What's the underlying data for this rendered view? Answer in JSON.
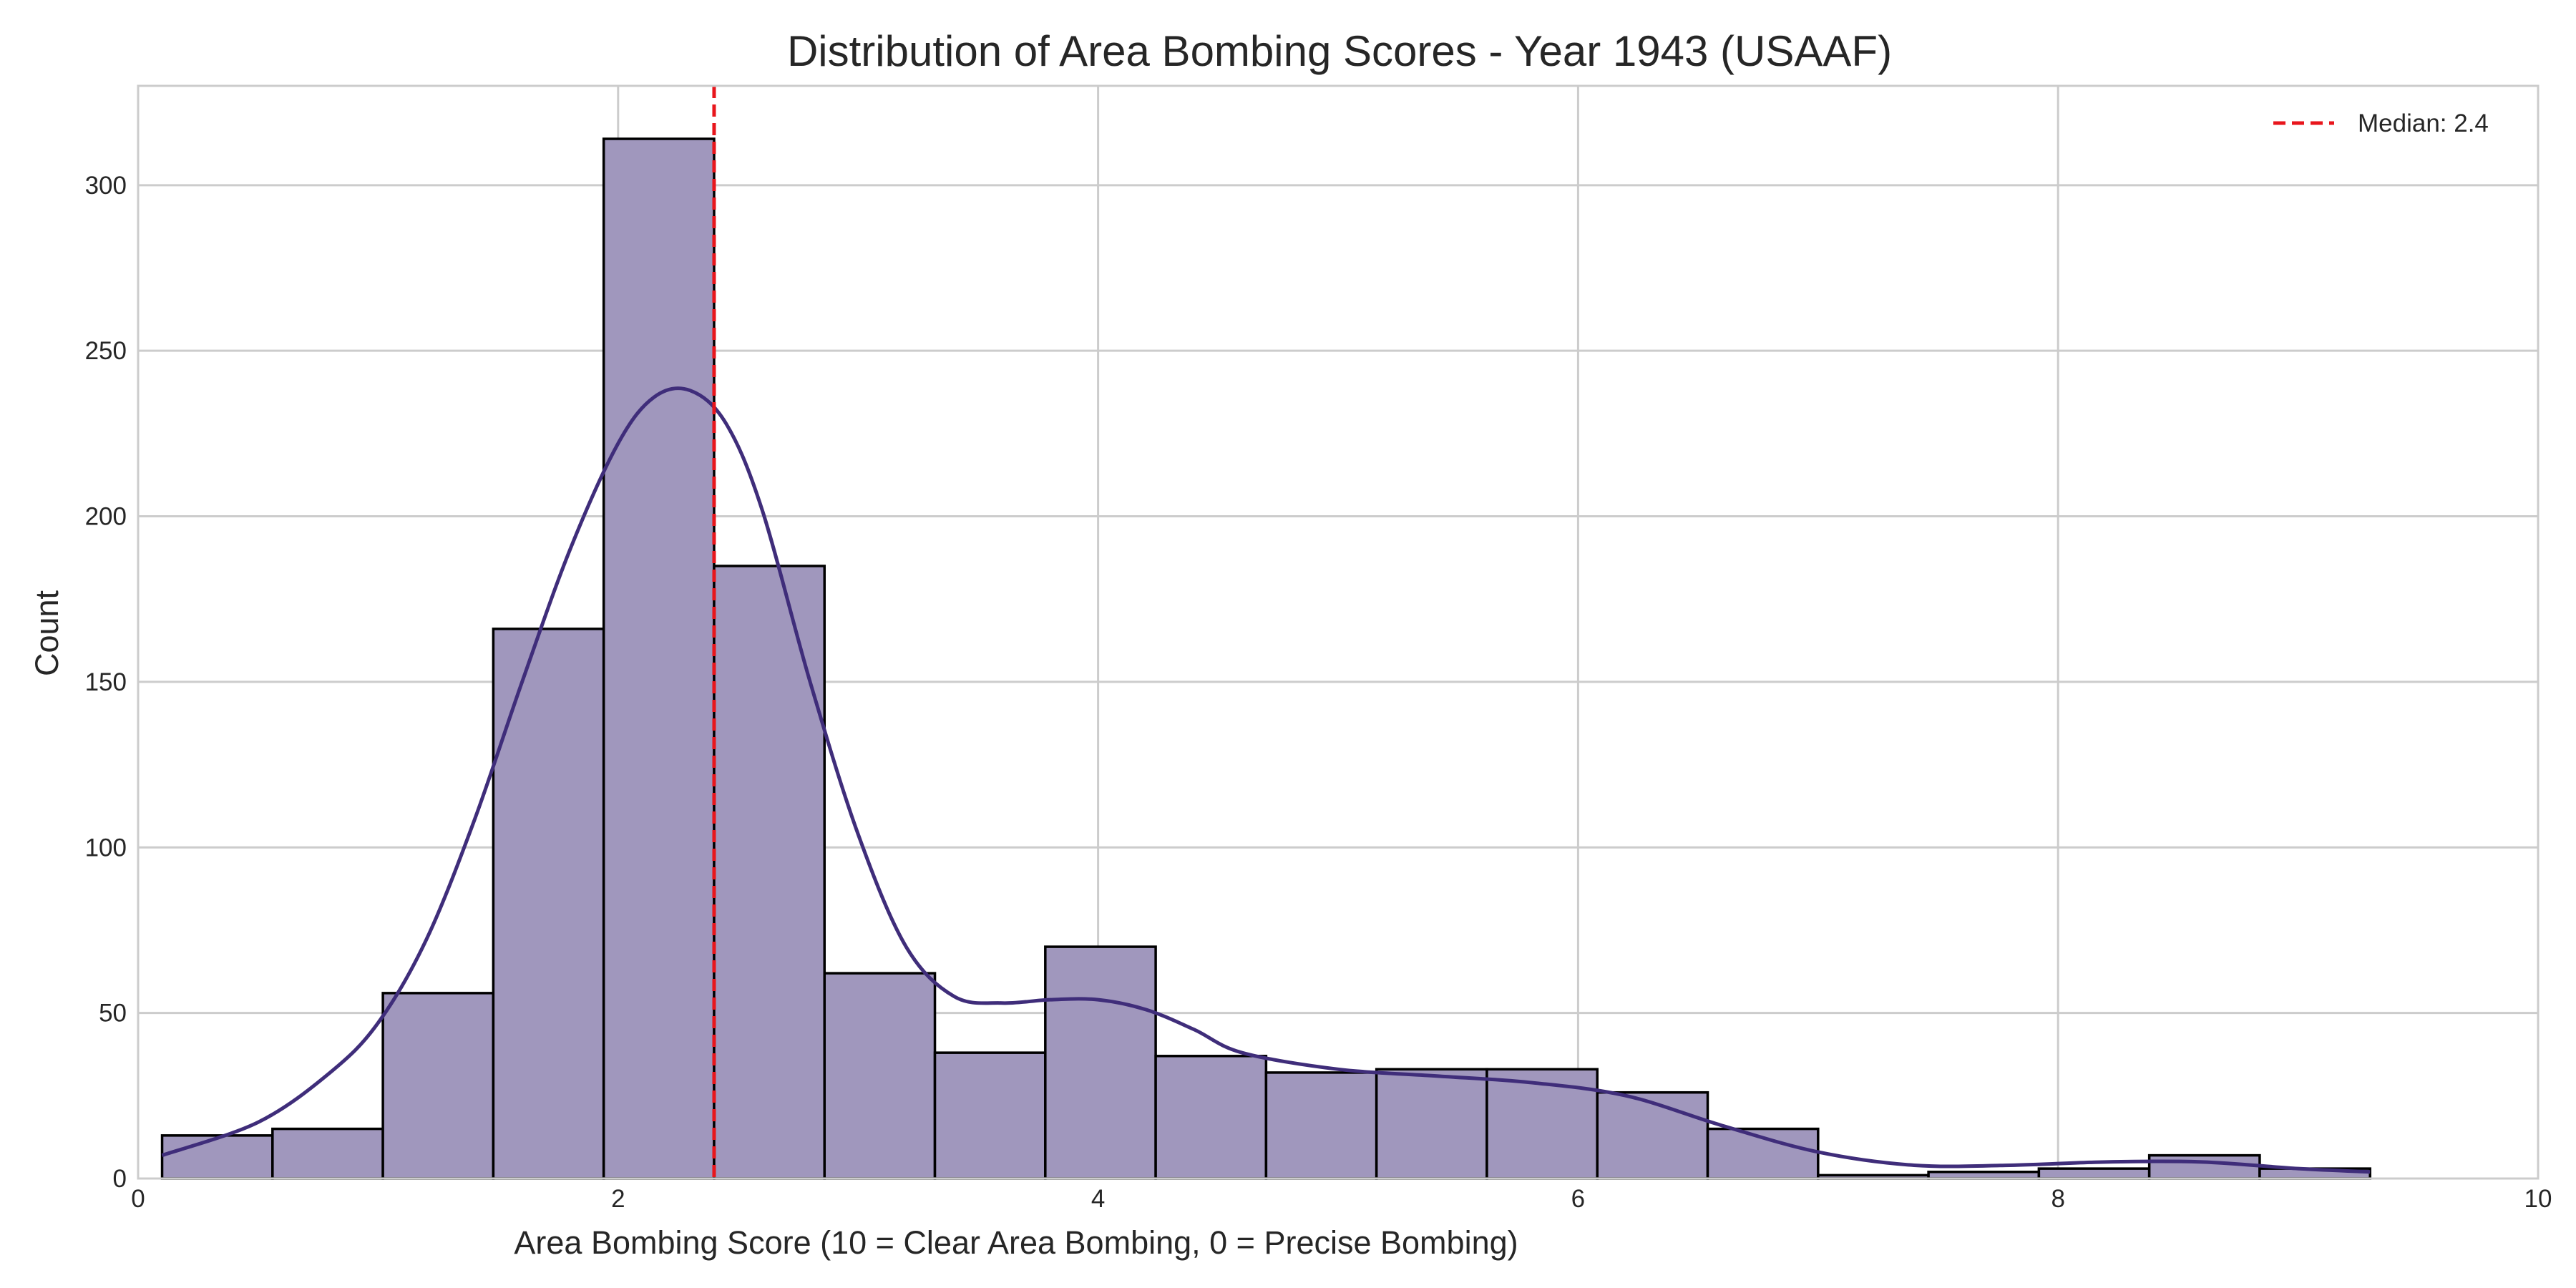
{
  "chart_data": {
    "type": "bar",
    "title": "Distribution of Area Bombing Scores - Year 1943 (USAAF)",
    "xlabel": "Area Bombing Score (10 = Clear Area Bombing, 0 = Precise Bombing)",
    "ylabel": "Count",
    "xlim": [
      0,
      10
    ],
    "ylim": [
      0,
      330
    ],
    "xticks": [
      0,
      2,
      4,
      6,
      8,
      10
    ],
    "yticks": [
      0,
      50,
      100,
      150,
      200,
      250,
      300
    ],
    "grid": true,
    "legend_position": "top-right",
    "bin_edges": [
      0.1,
      0.56,
      1.02,
      1.48,
      1.94,
      2.4,
      2.86,
      3.32,
      3.78,
      4.24,
      4.7,
      5.16,
      5.62,
      6.08,
      6.54,
      7.0,
      7.46,
      7.92,
      8.38,
      8.84,
      9.3
    ],
    "values": [
      13,
      15,
      56,
      166,
      314,
      185,
      62,
      38,
      70,
      37,
      32,
      33,
      33,
      26,
      15,
      1,
      2,
      3,
      7,
      3
    ],
    "kde": {
      "x": [
        0.1,
        0.5,
        0.8,
        1.0,
        1.2,
        1.4,
        1.6,
        1.8,
        2.0,
        2.15,
        2.3,
        2.45,
        2.6,
        2.8,
        3.0,
        3.2,
        3.4,
        3.6,
        3.8,
        4.0,
        4.2,
        4.4,
        4.6,
        5.0,
        5.4,
        5.8,
        6.2,
        6.6,
        7.0,
        7.4,
        7.8,
        8.2,
        8.6,
        9.0,
        9.3
      ],
      "y": [
        7,
        17,
        32,
        47,
        72,
        108,
        150,
        190,
        222,
        236,
        238,
        228,
        202,
        150,
        104,
        70,
        55,
        53,
        54,
        54,
        51,
        45,
        38,
        33,
        31,
        29,
        25,
        16,
        8,
        4,
        4,
        5,
        5,
        3,
        2
      ]
    },
    "median": {
      "value": 2.4,
      "label": "Median: 2.4",
      "color": "#e8161c"
    },
    "colors": {
      "bar_fill": "#a097bd",
      "bar_edge": "#000000",
      "kde_line": "#3f2d7a",
      "grid": "#cccccc",
      "axes_edge": "#cccccc"
    }
  }
}
